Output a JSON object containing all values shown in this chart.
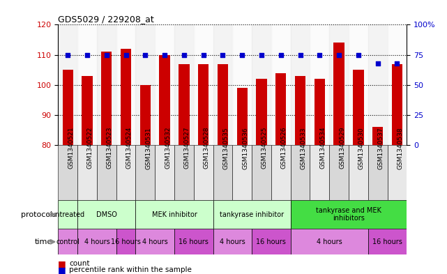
{
  "title": "GDS5029 / 229208_at",
  "samples": [
    "GSM1340521",
    "GSM1340522",
    "GSM1340523",
    "GSM1340524",
    "GSM1340531",
    "GSM1340532",
    "GSM1340527",
    "GSM1340528",
    "GSM1340535",
    "GSM1340536",
    "GSM1340525",
    "GSM1340526",
    "GSM1340533",
    "GSM1340534",
    "GSM1340529",
    "GSM1340530",
    "GSM1340537",
    "GSM1340538"
  ],
  "counts": [
    105,
    103,
    111,
    112,
    100,
    110,
    107,
    107,
    107,
    99,
    102,
    104,
    103,
    102,
    114,
    105,
    86,
    107
  ],
  "percentiles": [
    75,
    75,
    75,
    75,
    75,
    75,
    75,
    75,
    75,
    75,
    75,
    75,
    75,
    75,
    75,
    75,
    68,
    68
  ],
  "ylim_left": [
    80,
    120
  ],
  "ylim_right": [
    0,
    100
  ],
  "yticks_left": [
    80,
    90,
    100,
    110,
    120
  ],
  "yticks_right": [
    0,
    25,
    50,
    75,
    100
  ],
  "bar_color": "#cc0000",
  "dot_color": "#0000cc",
  "bar_bottom": 80,
  "light_green": "#ccffcc",
  "bright_green": "#44dd44",
  "pink1": "#dd88dd",
  "pink2": "#cc55cc",
  "label_grey": "#888888",
  "xlabel_color": "#cc0000",
  "ylabel_right_color": "#0000cc",
  "protocol_groups": [
    {
      "label": "untreated",
      "start": 0,
      "end": 2,
      "bright": false
    },
    {
      "label": "DMSO",
      "start": 2,
      "end": 8,
      "bright": false
    },
    {
      "label": "MEK inhibitor",
      "start": 8,
      "end": 16,
      "bright": false
    },
    {
      "label": "tankyrase inhibitor",
      "start": 16,
      "end": 24,
      "bright": false
    },
    {
      "label": "tankyrase and MEK\ninhibitors",
      "start": 24,
      "end": 36,
      "bright": true
    }
  ],
  "time_groups": [
    {
      "label": "control",
      "start": 0,
      "end": 2,
      "alt": false
    },
    {
      "label": "4 hours",
      "start": 2,
      "end": 6,
      "alt": false
    },
    {
      "label": "16 hours",
      "start": 6,
      "end": 8,
      "alt": true
    },
    {
      "label": "4 hours",
      "start": 8,
      "end": 12,
      "alt": false
    },
    {
      "label": "16 hours",
      "start": 12,
      "end": 16,
      "alt": true
    },
    {
      "label": "4 hours",
      "start": 16,
      "end": 20,
      "alt": false
    },
    {
      "label": "16 hours",
      "start": 20,
      "end": 24,
      "alt": true
    },
    {
      "label": "4 hours",
      "start": 24,
      "end": 32,
      "alt": false
    },
    {
      "label": "16 hours",
      "start": 32,
      "end": 36,
      "alt": true
    }
  ]
}
